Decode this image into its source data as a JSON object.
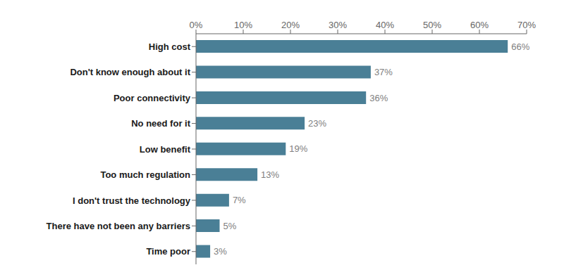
{
  "chart_data": {
    "type": "bar",
    "orientation": "horizontal",
    "categories": [
      "Time poor",
      "There have not been any barriers",
      "I don't trust the technology",
      "Too much regulation",
      "Low benefit",
      "No need for it",
      "Poor connectivity",
      "Don't know enough about it",
      "High cost"
    ],
    "values": [
      3,
      5,
      7,
      13,
      19,
      23,
      36,
      37,
      66
    ],
    "value_labels": [
      "3%",
      "5%",
      "7%",
      "13%",
      "19%",
      "23%",
      "36%",
      "37%",
      "66%"
    ],
    "data_labels": true,
    "color": "#4a7f96",
    "xlim": [
      0,
      70
    ],
    "xticks": [
      {
        "value": 0,
        "label": "0%"
      },
      {
        "value": 10,
        "label": "10%"
      },
      {
        "value": 20,
        "label": "20%"
      },
      {
        "value": 30,
        "label": "30%"
      },
      {
        "value": 40,
        "label": "40%"
      },
      {
        "value": 50,
        "label": "50%"
      },
      {
        "value": 60,
        "label": "60%"
      },
      {
        "value": 70,
        "label": "70%"
      }
    ],
    "grid": false
  }
}
